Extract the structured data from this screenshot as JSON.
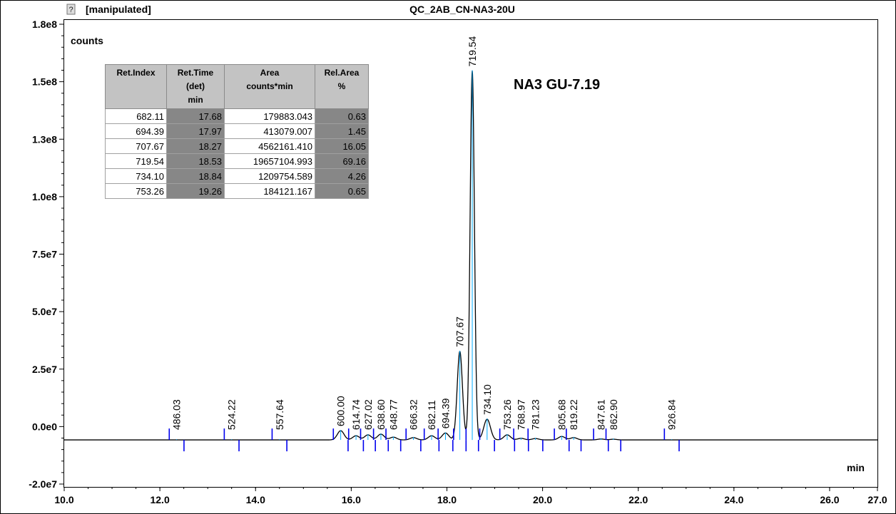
{
  "window": {
    "status": "[manipulated]",
    "title": "QC_2AB_CN-NA3-20U",
    "help_icon": "help-icon"
  },
  "chart_data": {
    "type": "line",
    "title": "QC_2AB_CN-NA3-20U",
    "ylabel": "counts",
    "xlabel": "min",
    "xlim": [
      10.0,
      27.0
    ],
    "ylim": [
      -20000000,
      180000000
    ],
    "x_tick_labels": [
      "10.0",
      "12.0",
      "14.0",
      "16.0",
      "18.0",
      "20.0",
      "22.0",
      "24.0",
      "26.0",
      "27.0"
    ],
    "y_tick_labels": [
      "-2.0e7",
      "0.0e0",
      "2.5e7",
      "5.0e7",
      "7.5e7",
      "1.0e8",
      "1.3e8",
      "1.5e8",
      "1.8e8"
    ],
    "grid": false,
    "baseline": -800000,
    "peaks": [
      {
        "label": "486.03",
        "time": 12.35,
        "height": 0
      },
      {
        "label": "524.22",
        "time": 13.5,
        "height": 0
      },
      {
        "label": "557.64",
        "time": 14.5,
        "height": 0
      },
      {
        "label": "600.00",
        "time": 15.78,
        "height": 4000000
      },
      {
        "label": "614.74",
        "time": 16.1,
        "height": 1800000
      },
      {
        "label": "627.02",
        "time": 16.35,
        "height": 2200000
      },
      {
        "label": "638.60",
        "time": 16.62,
        "height": 2500000
      },
      {
        "label": "648.77",
        "time": 16.88,
        "height": 1200000
      },
      {
        "label": "666.32",
        "time": 17.3,
        "height": 1000000
      },
      {
        "label": "682.11",
        "time": 17.68,
        "height": 1800000
      },
      {
        "label": "694.39",
        "time": 17.97,
        "height": 3000000
      },
      {
        "label": "707.67",
        "time": 18.27,
        "height": 38500000
      },
      {
        "label": "719.54",
        "time": 18.53,
        "height": 160500000
      },
      {
        "label": "734.10",
        "time": 18.84,
        "height": 9000000
      },
      {
        "label": "753.26",
        "time": 19.26,
        "height": 2200000
      },
      {
        "label": "768.97",
        "time": 19.55,
        "height": 700000
      },
      {
        "label": "781.23",
        "time": 19.85,
        "height": 600000
      },
      {
        "label": "805.68",
        "time": 20.4,
        "height": 1500000
      },
      {
        "label": "819.22",
        "time": 20.65,
        "height": 1000000
      },
      {
        "label": "847.61",
        "time": 21.22,
        "height": 400000
      },
      {
        "label": "862.90",
        "time": 21.48,
        "height": 300000
      },
      {
        "label": "926.84",
        "time": 22.7,
        "height": 0
      }
    ],
    "annotation": "NA3 GU-7.19"
  },
  "table": {
    "headers": [
      [
        "Ret.Index"
      ],
      [
        "Ret.Time",
        "(det)",
        "min"
      ],
      [
        "Area",
        "counts*min"
      ],
      [
        "Rel.Area",
        "%"
      ]
    ],
    "rows": [
      [
        "682.11",
        "17.68",
        "179883.043",
        "0.63"
      ],
      [
        "694.39",
        "17.97",
        "413079.007",
        "1.45"
      ],
      [
        "707.67",
        "18.27",
        "4562161.410",
        "16.05"
      ],
      [
        "719.54",
        "18.53",
        "19657104.993",
        "69.16"
      ],
      [
        "734.10",
        "18.84",
        "1209754.589",
        "4.26"
      ],
      [
        "753.26",
        "19.26",
        "184121.167",
        "0.65"
      ]
    ]
  },
  "colors": {
    "trace": "#000000",
    "marker": "#0000ee",
    "marker_light": "#00aaff",
    "table_header": "#c3c3c3",
    "table_dark": "#878787"
  }
}
